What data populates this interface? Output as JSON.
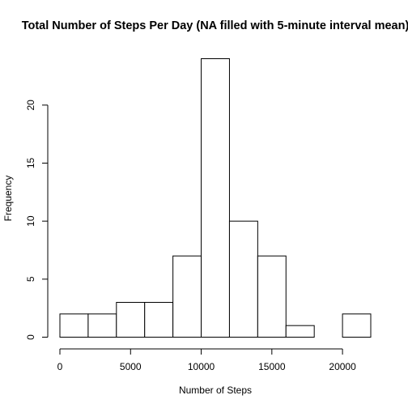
{
  "chart_data": {
    "type": "bar",
    "title": "Total Number of Steps Per Day (NA filled with 5-minute interval mean)",
    "xlabel": "Number of Steps",
    "ylabel": "Frequency",
    "bins": [
      {
        "from": 0,
        "to": 2000,
        "count": 2
      },
      {
        "from": 2000,
        "to": 4000,
        "count": 2
      },
      {
        "from": 4000,
        "to": 6000,
        "count": 3
      },
      {
        "from": 6000,
        "to": 8000,
        "count": 3
      },
      {
        "from": 8000,
        "to": 10000,
        "count": 7
      },
      {
        "from": 10000,
        "to": 12000,
        "count": 24
      },
      {
        "from": 12000,
        "to": 14000,
        "count": 10
      },
      {
        "from": 14000,
        "to": 16000,
        "count": 7
      },
      {
        "from": 16000,
        "to": 18000,
        "count": 1
      },
      {
        "from": 18000,
        "to": 20000,
        "count": 0
      },
      {
        "from": 20000,
        "to": 22000,
        "count": 2
      }
    ],
    "xlim": [
      0,
      22000
    ],
    "ylim": [
      0,
      24
    ],
    "x_ticks": [
      0,
      5000,
      10000,
      15000,
      20000
    ],
    "y_ticks": [
      0,
      5,
      10,
      15,
      20
    ],
    "grid": false,
    "legend": "none"
  }
}
